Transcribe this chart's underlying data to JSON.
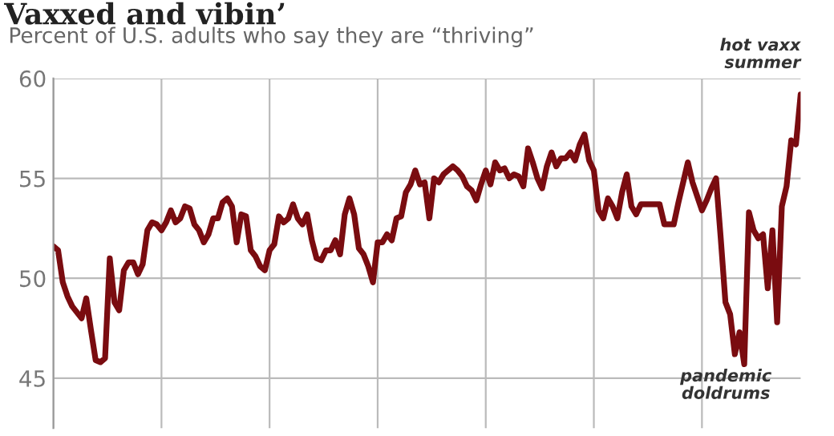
{
  "chart_data": {
    "type": "line",
    "title": "Vaxxed and vibin’",
    "subtitle": "Percent of U.S. adults who say they are “thriving”",
    "categories": [
      null,
      null,
      null,
      null,
      null,
      null,
      null,
      null,
      null,
      null,
      null,
      null,
      null,
      null,
      null,
      null,
      null,
      null,
      null,
      null,
      null,
      null,
      null,
      null,
      null,
      null,
      null,
      null,
      null,
      null,
      null,
      null,
      null,
      null,
      null,
      null,
      null,
      null,
      null,
      null,
      null,
      null,
      null,
      null,
      null,
      null,
      null,
      null,
      null,
      null,
      null,
      null,
      null,
      null,
      null,
      null,
      null,
      null,
      null,
      null,
      null,
      null,
      null,
      null,
      null,
      null,
      null,
      null,
      null,
      null,
      null,
      null,
      null,
      null,
      null,
      null,
      null,
      null,
      null,
      null,
      null,
      null,
      null,
      null,
      null,
      null,
      null,
      null,
      null,
      null,
      null,
      null,
      null,
      null,
      null,
      null,
      null,
      null,
      null,
      null,
      null,
      null,
      null,
      null,
      null,
      null,
      null,
      null,
      null,
      null,
      null,
      null,
      null,
      null,
      null,
      null,
      null,
      null,
      null,
      null,
      null,
      null,
      null,
      null,
      null,
      null,
      null,
      null,
      null,
      null,
      null,
      null,
      null,
      null,
      null,
      null,
      null,
      null,
      null,
      null,
      null,
      null,
      null,
      null,
      null,
      null,
      null,
      null,
      null,
      null,
      null,
      null,
      null,
      null,
      null,
      null,
      null,
      null,
      null,
      null
    ],
    "series": [
      {
        "color": "#7a0c10",
        "values": [
          51.6,
          51.4,
          49.8,
          49.1,
          48.6,
          48.3,
          48.0,
          49.0,
          47.4,
          45.9,
          45.8,
          46.0,
          51.0,
          48.8,
          48.4,
          50.4,
          50.8,
          50.8,
          50.2,
          50.7,
          52.4,
          52.8,
          52.7,
          52.4,
          52.8,
          53.4,
          52.8,
          53.0,
          53.6,
          53.5,
          52.7,
          52.4,
          51.8,
          52.2,
          53.0,
          53.0,
          53.8,
          54.0,
          53.6,
          51.8,
          53.2,
          53.1,
          51.4,
          51.1,
          50.6,
          50.4,
          51.4,
          51.7,
          53.1,
          52.8,
          53.0,
          53.7,
          53.0,
          52.7,
          53.2,
          51.9,
          51.0,
          50.9,
          51.4,
          51.4,
          51.9,
          51.2,
          53.2,
          54.0,
          53.2,
          51.5,
          51.2,
          50.6,
          49.8,
          51.8,
          51.8,
          52.2,
          51.9,
          53.0,
          53.1,
          54.3,
          54.7,
          55.4,
          54.7,
          54.8,
          53.0,
          55.0,
          54.8,
          55.2,
          55.4,
          55.6,
          55.4,
          55.1,
          54.6,
          54.4,
          53.9,
          54.7,
          55.4,
          54.7,
          55.8,
          55.4,
          55.5,
          55.0,
          55.2,
          55.1,
          54.6,
          56.5,
          55.8,
          55.0,
          54.5,
          55.6,
          56.3,
          55.6,
          56.0,
          56.0,
          56.3,
          55.9,
          56.7,
          57.2,
          55.9,
          55.4,
          53.4,
          53.0,
          54.0,
          53.6,
          53.0,
          54.3,
          55.2,
          53.6,
          53.2,
          53.7,
          53.7,
          53.7,
          53.7,
          53.7,
          52.7,
          52.7,
          52.7,
          53.8,
          54.8,
          55.8,
          54.8,
          54.1,
          53.4,
          53.9,
          54.5,
          55.0,
          52.0,
          48.8,
          48.2,
          46.2,
          47.3,
          45.7,
          53.3,
          52.4,
          52.0,
          52.2,
          49.5,
          52.4,
          47.8,
          53.6,
          54.6,
          56.9,
          56.7,
          59.2
        ]
      }
    ],
    "ylim": [
      42.5,
      60
    ],
    "yticks": [
      45,
      50,
      55,
      60
    ],
    "grid": true,
    "tick_labels": "y",
    "line_style": "solid",
    "marker": "none",
    "annotations": [
      "hot vaxx\nsummer",
      "pandemic\ndoldrums"
    ]
  }
}
